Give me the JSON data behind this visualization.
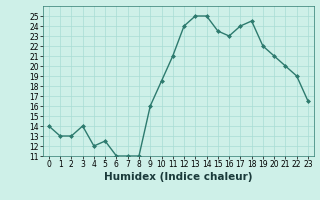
{
  "x": [
    0,
    1,
    2,
    3,
    4,
    5,
    6,
    7,
    8,
    9,
    10,
    11,
    12,
    13,
    14,
    15,
    16,
    17,
    18,
    19,
    20,
    21,
    22,
    23
  ],
  "y": [
    14,
    13,
    13,
    14,
    12,
    12.5,
    11,
    11,
    11,
    16,
    18.5,
    21,
    24,
    25,
    25,
    23.5,
    23,
    24,
    24.5,
    22,
    21,
    20,
    19,
    16.5
  ],
  "line_color": "#2d7a6e",
  "marker_color": "#2d7a6e",
  "bg_color": "#cef0e8",
  "grid_color": "#a8ddd4",
  "xlabel": "Humidex (Indice chaleur)",
  "ylim": [
    11,
    26
  ],
  "xlim": [
    -0.5,
    23.5
  ],
  "yticks": [
    11,
    12,
    13,
    14,
    15,
    16,
    17,
    18,
    19,
    20,
    21,
    22,
    23,
    24,
    25
  ],
  "xticks": [
    0,
    1,
    2,
    3,
    4,
    5,
    6,
    7,
    8,
    9,
    10,
    11,
    12,
    13,
    14,
    15,
    16,
    17,
    18,
    19,
    20,
    21,
    22,
    23
  ],
  "xtick_labels": [
    "0",
    "1",
    "2",
    "3",
    "4",
    "5",
    "6",
    "7",
    "8",
    "9",
    "10",
    "11",
    "12",
    "13",
    "14",
    "15",
    "16",
    "17",
    "18",
    "19",
    "20",
    "21",
    "22",
    "23"
  ],
  "tick_fontsize": 5.5,
  "xlabel_fontsize": 7.5,
  "line_width": 1.0,
  "marker_size": 2.0
}
